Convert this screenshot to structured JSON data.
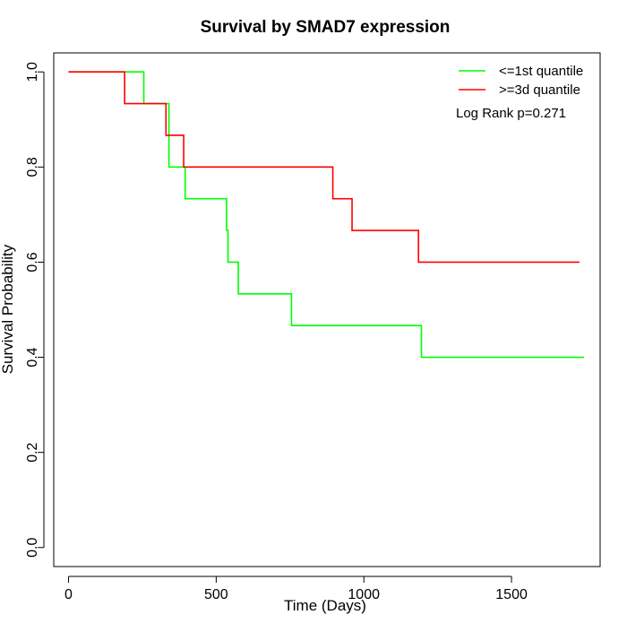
{
  "chart_data": {
    "type": "line",
    "title": "Survival by SMAD7 expression",
    "xlabel": "Time (Days)",
    "ylabel": "Survival Probability",
    "xlim": [
      -50,
      1800
    ],
    "ylim": [
      -0.04,
      1.04
    ],
    "x_ticks": [
      0,
      500,
      1000,
      1500
    ],
    "x_tick_labels": [
      "0",
      "500",
      "1000",
      "1500"
    ],
    "y_ticks": [
      0.0,
      0.2,
      0.4,
      0.6,
      0.8,
      1.0
    ],
    "y_tick_labels": [
      "0.0",
      "0.2",
      "0.4",
      "0.6",
      "0.8",
      "1.0"
    ],
    "grid": false,
    "legend_position": "top-right",
    "annotation": "Log Rank p=0.271",
    "series": [
      {
        "name": "<=1st quantile",
        "color": "#00ff00",
        "step_x": [
          0,
          255,
          340,
          395,
          535,
          540,
          575,
          755,
          1195,
          1745
        ],
        "step_y": [
          1.0,
          0.9333,
          0.8,
          0.7333,
          0.6667,
          0.6,
          0.5333,
          0.4667,
          0.4,
          0.4
        ]
      },
      {
        "name": ">=3d quantile",
        "color": "#ff0000",
        "step_x": [
          0,
          190,
          330,
          390,
          895,
          960,
          1185,
          1730
        ],
        "step_y": [
          1.0,
          0.9333,
          0.8667,
          0.8,
          0.7333,
          0.6667,
          0.6,
          0.6
        ]
      }
    ]
  }
}
